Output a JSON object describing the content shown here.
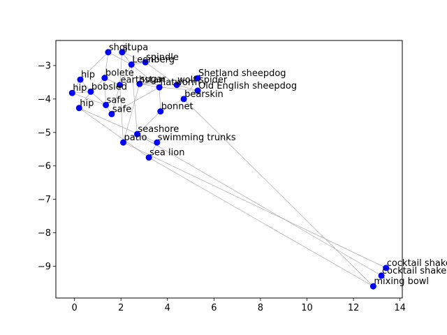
{
  "chart_data": {
    "type": "scatter",
    "title": "",
    "xlabel": "",
    "ylabel": "",
    "xlim": [
      -0.8,
      14.1
    ],
    "ylim": [
      -9.95,
      -2.25
    ],
    "xticks": [
      0,
      2,
      4,
      6,
      8,
      10,
      12,
      14
    ],
    "yticks": [
      -3,
      -4,
      -5,
      -6,
      -7,
      -8,
      -9
    ],
    "grid": false,
    "point_color": "#0000ff",
    "edge_color": "#9e9e9e",
    "points": [
      {
        "label": "shoji",
        "x": 1.45,
        "y": -2.6
      },
      {
        "label": "stupa",
        "x": 2.05,
        "y": -2.6
      },
      {
        "label": "spindle",
        "x": 3.05,
        "y": -2.9
      },
      {
        "label": "Leonberg",
        "x": 2.45,
        "y": -2.97
      },
      {
        "label": "hip",
        "x": 0.25,
        "y": -3.42
      },
      {
        "label": "bolete",
        "x": 1.3,
        "y": -3.37
      },
      {
        "label": "Shetland sheepdog",
        "x": 5.3,
        "y": -3.38
      },
      {
        "label": "wolf spider",
        "x": 4.4,
        "y": -3.58
      },
      {
        "label": "earthstar",
        "x": 1.95,
        "y": -3.58
      },
      {
        "label": "sugar",
        "x": 2.8,
        "y": -3.55
      },
      {
        "label": "flatworm",
        "x": 3.65,
        "y": -3.65
      },
      {
        "label": "Old English sheepdog",
        "x": 5.3,
        "y": -3.75
      },
      {
        "label": "hip",
        "x": -0.1,
        "y": -3.82
      },
      {
        "label": "bobsled",
        "x": 0.7,
        "y": -3.78
      },
      {
        "label": "bearskin",
        "x": 4.7,
        "y": -4.0
      },
      {
        "label": "safe",
        "x": 1.35,
        "y": -4.18
      },
      {
        "label": "hip",
        "x": 0.2,
        "y": -4.27
      },
      {
        "label": "bonnet",
        "x": 3.7,
        "y": -4.37
      },
      {
        "label": "safe",
        "x": 1.6,
        "y": -4.45
      },
      {
        "label": "seashore",
        "x": 2.7,
        "y": -5.05
      },
      {
        "label": "patio",
        "x": 2.1,
        "y": -5.3
      },
      {
        "label": "swimming trunks",
        "x": 3.55,
        "y": -5.3
      },
      {
        "label": "sea lion",
        "x": 3.2,
        "y": -5.75
      },
      {
        "label": "cocktail shaker",
        "x": 13.4,
        "y": -9.05
      },
      {
        "label": "cocktail shaker",
        "x": 13.2,
        "y": -9.28
      },
      {
        "label": "mixing bowl",
        "x": 12.85,
        "y": -9.6
      }
    ],
    "edges": [
      [
        0,
        4
      ],
      [
        0,
        5
      ],
      [
        0,
        3
      ],
      [
        1,
        3
      ],
      [
        1,
        8
      ],
      [
        1,
        2
      ],
      [
        2,
        3
      ],
      [
        2,
        7
      ],
      [
        3,
        10
      ],
      [
        3,
        8
      ],
      [
        4,
        13
      ],
      [
        4,
        12
      ],
      [
        5,
        13
      ],
      [
        5,
        8
      ],
      [
        5,
        15
      ],
      [
        6,
        7
      ],
      [
        6,
        14
      ],
      [
        6,
        9
      ],
      [
        7,
        9
      ],
      [
        7,
        11
      ],
      [
        9,
        10
      ],
      [
        10,
        11
      ],
      [
        10,
        17
      ],
      [
        11,
        14
      ],
      [
        12,
        13
      ],
      [
        13,
        16
      ],
      [
        13,
        15
      ],
      [
        15,
        18
      ],
      [
        16,
        21
      ],
      [
        16,
        22
      ],
      [
        17,
        14
      ],
      [
        17,
        19
      ],
      [
        18,
        10
      ],
      [
        19,
        20
      ],
      [
        19,
        24
      ],
      [
        20,
        8
      ],
      [
        20,
        23
      ],
      [
        21,
        22
      ],
      [
        22,
        25
      ],
      [
        9,
        20
      ],
      [
        14,
        25
      ],
      [
        19,
        3
      ],
      [
        8,
        18
      ],
      [
        12,
        15
      ]
    ]
  }
}
